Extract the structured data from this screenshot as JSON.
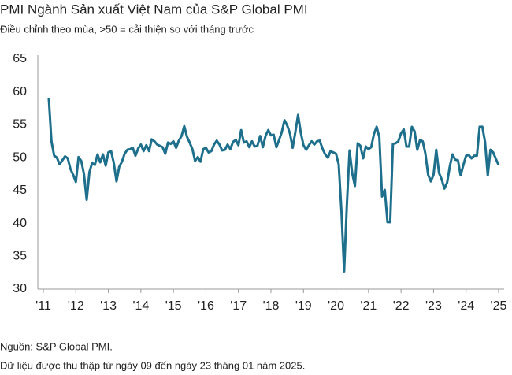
{
  "chart_data": {
    "type": "line",
    "title": "PMI Ngành Sản xuất Việt Nam của S&P Global PMI",
    "subtitle": "Điều chỉnh theo mùa, >50 = cải thiện so với tháng trước",
    "notes": [
      "Nguồn: S&P Global PMI.",
      "Dữ liệu được thu thập từ ngày 09 đến ngày 23 tháng 01 năm 2025."
    ],
    "color": "#1e6f8c",
    "grid": false,
    "xlim": [
      2010.83,
      2025.17
    ],
    "ylim": [
      30,
      65
    ],
    "yticks": [
      30,
      35,
      40,
      45,
      50,
      55,
      60,
      65
    ],
    "xticks": [
      {
        "value": 2011,
        "label": "'11"
      },
      {
        "value": 2012,
        "label": "'12"
      },
      {
        "value": 2013,
        "label": "'13"
      },
      {
        "value": 2014,
        "label": "'14"
      },
      {
        "value": 2015,
        "label": "'15"
      },
      {
        "value": 2016,
        "label": "'16"
      },
      {
        "value": 2017,
        "label": "'17"
      },
      {
        "value": 2018,
        "label": "'18"
      },
      {
        "value": 2019,
        "label": "'19"
      },
      {
        "value": 2020,
        "label": "'20"
      },
      {
        "value": 2021,
        "label": "'21"
      },
      {
        "value": 2022,
        "label": "'22"
      },
      {
        "value": 2023,
        "label": "'23"
      },
      {
        "value": 2024,
        "label": "'24"
      },
      {
        "value": 2025,
        "label": "'25"
      }
    ],
    "x": [
      2011.167,
      2011.25,
      2011.333,
      2011.417,
      2011.5,
      2011.583,
      2011.667,
      2011.75,
      2011.833,
      2011.917,
      2012,
      2012.083,
      2012.167,
      2012.25,
      2012.333,
      2012.417,
      2012.5,
      2012.583,
      2012.667,
      2012.75,
      2012.833,
      2012.917,
      2013,
      2013.083,
      2013.167,
      2013.25,
      2013.333,
      2013.417,
      2013.5,
      2013.583,
      2013.667,
      2013.75,
      2013.833,
      2013.917,
      2014,
      2014.083,
      2014.167,
      2014.25,
      2014.333,
      2014.417,
      2014.5,
      2014.583,
      2014.667,
      2014.75,
      2014.833,
      2014.917,
      2015,
      2015.083,
      2015.167,
      2015.25,
      2015.333,
      2015.417,
      2015.5,
      2015.583,
      2015.667,
      2015.75,
      2015.833,
      2015.917,
      2016,
      2016.083,
      2016.167,
      2016.25,
      2016.333,
      2016.417,
      2016.5,
      2016.583,
      2016.667,
      2016.75,
      2016.833,
      2016.917,
      2017,
      2017.083,
      2017.167,
      2017.25,
      2017.333,
      2017.417,
      2017.5,
      2017.583,
      2017.667,
      2017.75,
      2017.833,
      2017.917,
      2018,
      2018.083,
      2018.167,
      2018.25,
      2018.333,
      2018.417,
      2018.5,
      2018.583,
      2018.667,
      2018.75,
      2018.833,
      2018.917,
      2019,
      2019.083,
      2019.167,
      2019.25,
      2019.333,
      2019.417,
      2019.5,
      2019.583,
      2019.667,
      2019.75,
      2019.833,
      2019.917,
      2020,
      2020.083,
      2020.167,
      2020.25,
      2020.333,
      2020.417,
      2020.5,
      2020.583,
      2020.667,
      2020.75,
      2020.833,
      2020.917,
      2021,
      2021.083,
      2021.167,
      2021.25,
      2021.333,
      2021.417,
      2021.5,
      2021.583,
      2021.667,
      2021.75,
      2021.833,
      2021.917,
      2022,
      2022.083,
      2022.167,
      2022.25,
      2022.333,
      2022.417,
      2022.5,
      2022.583,
      2022.667,
      2022.75,
      2022.833,
      2022.917,
      2023,
      2023.083,
      2023.167,
      2023.25,
      2023.333,
      2023.417,
      2023.5,
      2023.583,
      2023.667,
      2023.75,
      2023.833,
      2023.917,
      2024,
      2024.083,
      2024.167,
      2024.25,
      2024.333,
      2024.417,
      2024.5,
      2024.583,
      2024.667,
      2024.75,
      2024.833,
      2024.917,
      2025
    ],
    "values": [
      59.1,
      52.5,
      50.3,
      50.0,
      49.0,
      49.6,
      50.2,
      49.9,
      48.3,
      47.4,
      46.3,
      50.1,
      49.5,
      47.5,
      43.6,
      47.8,
      49.2,
      48.9,
      50.5,
      49.3,
      50.5,
      48.8,
      50.8,
      51.0,
      49.2,
      46.4,
      48.6,
      49.4,
      50.6,
      51.2,
      51.3,
      51.5,
      50.3,
      51.4,
      52.0,
      51.0,
      51.9,
      51.0,
      52.8,
      52.5,
      52.0,
      51.8,
      51.6,
      50.6,
      52.3,
      52.1,
      52.5,
      51.5,
      52.6,
      53.3,
      54.8,
      53.2,
      52.3,
      51.3,
      49.5,
      50.1,
      49.4,
      51.3,
      51.5,
      50.8,
      51.0,
      52.0,
      52.6,
      52.0,
      51.1,
      51.2,
      52.0,
      51.3,
      52.4,
      52.7,
      51.9,
      54.2,
      52.3,
      52.5,
      51.6,
      52.5,
      51.7,
      51.8,
      53.3,
      51.6,
      53.3,
      54.2,
      53.4,
      53.5,
      51.6,
      52.7,
      53.9,
      55.7,
      54.9,
      53.7,
      51.5,
      53.9,
      56.5,
      53.8,
      51.9,
      51.2,
      51.9,
      52.5,
      52.0,
      52.5,
      52.6,
      51.4,
      50.5,
      50.0,
      51.0,
      50.8,
      50.6,
      49.0,
      41.9,
      32.7,
      42.7,
      51.1,
      47.6,
      45.7,
      52.2,
      51.8,
      49.9,
      51.7,
      51.3,
      51.6,
      53.6,
      54.7,
      53.1,
      44.1,
      45.1,
      40.2,
      40.2,
      52.1,
      52.2,
      52.5,
      53.7,
      54.3,
      51.7,
      51.7,
      54.7,
      54.0,
      51.2,
      52.7,
      52.5,
      50.6,
      47.4,
      46.4,
      47.4,
      51.2,
      47.7,
      46.7,
      45.3,
      46.2,
      48.7,
      50.5,
      49.7,
      49.6,
      47.3,
      48.9,
      50.3,
      50.4,
      49.9,
      50.3,
      50.3,
      54.7,
      54.7,
      52.4,
      47.3,
      51.2,
      50.8,
      49.8,
      48.9
    ]
  }
}
